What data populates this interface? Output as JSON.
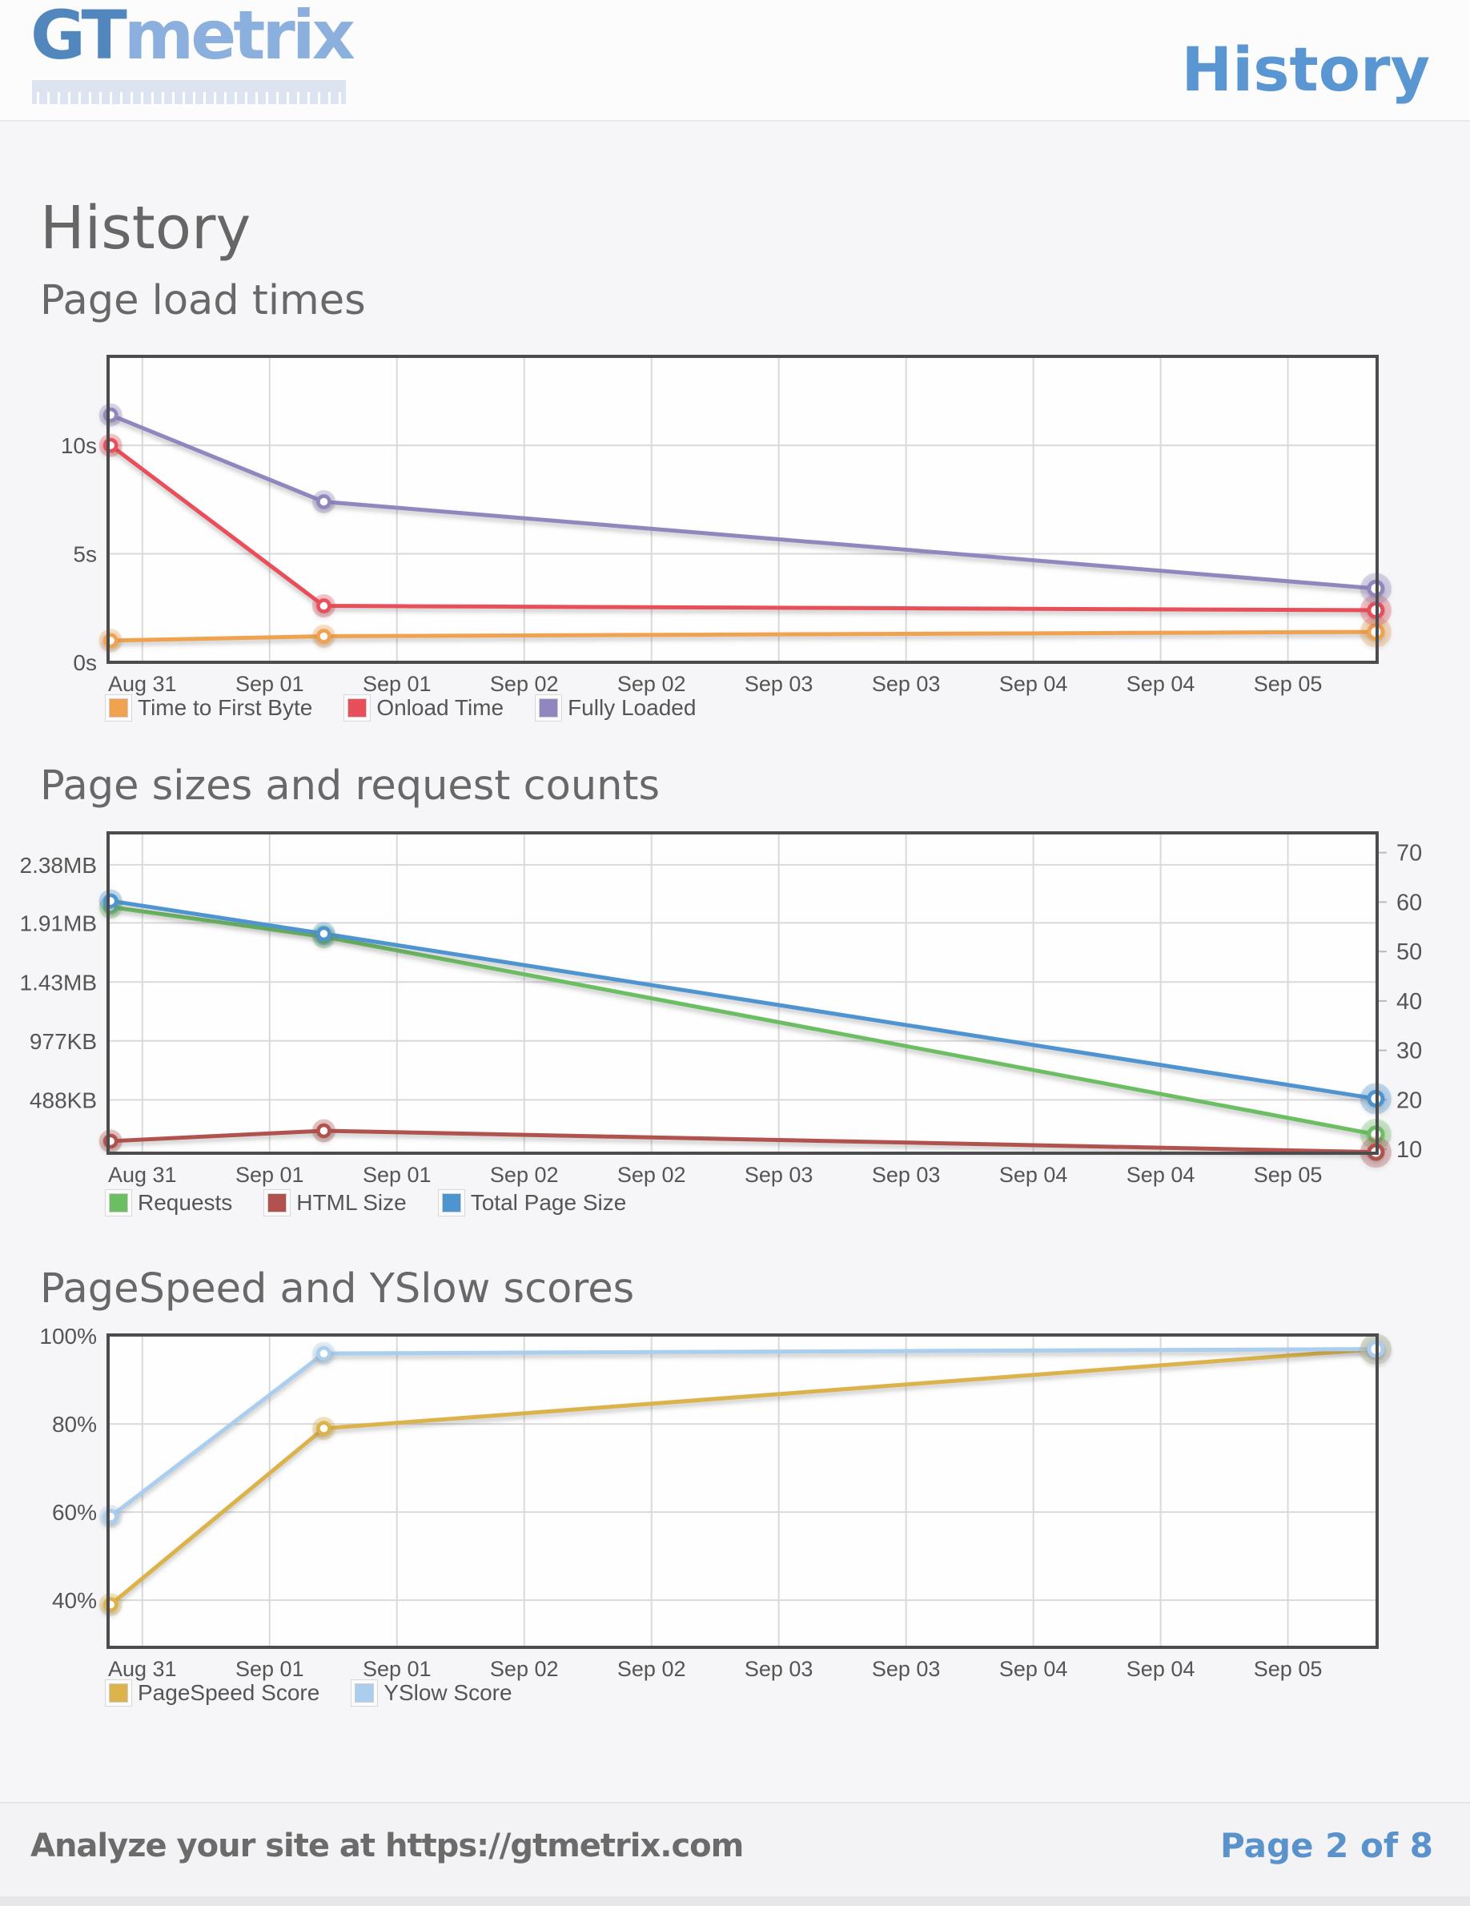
{
  "colors": {
    "page_bg": "#f6f6f8",
    "header_bg": "#fcfcfd",
    "accent_blue": "#5a96d2",
    "logo_gt_blue": "#5287be",
    "logo_metrix_blue": "#8cb0dd",
    "heading_gray": "#686868",
    "axis_text": "#555555",
    "grid_line": "#d9d9dc",
    "plot_border": "#4c4c4e",
    "footer_text": "#6b6b6b",
    "footer_page_blue": "#5a92cc"
  },
  "header": {
    "logo_gt": "GT",
    "logo_metrix": "metrix",
    "page_title": "History"
  },
  "main_heading": "History",
  "footer": {
    "left_text": "Analyze your site at https://gtmetrix.com",
    "right_text": "Page 2 of 8"
  },
  "chart_data": [
    {
      "id": "page-load-times",
      "type": "line",
      "title": "Page load times",
      "x_tick_labels": [
        "Aug 31",
        "Sep 01",
        "Sep 01",
        "Sep 02",
        "Sep 02",
        "Sep 03",
        "Sep 03",
        "Sep 04",
        "Sep 04",
        "Sep 05"
      ],
      "x_layout": {
        "tick_start_frac": 0.027,
        "tick_step_frac": 0.1003,
        "point_fracs": [
          0.002,
          0.17,
          0.999
        ]
      },
      "axes": {
        "left": {
          "min": 0,
          "max": 14.1,
          "ticks": [
            {
              "v": 0,
              "label": "0s"
            },
            {
              "v": 5,
              "label": "5s"
            },
            {
              "v": 10,
              "label": "10s"
            }
          ]
        }
      },
      "series": [
        {
          "name": "Time to First Byte",
          "color": "#F0A24E",
          "axis": "left",
          "unit": "s",
          "values": [
            1.0,
            1.2,
            1.4
          ]
        },
        {
          "name": "Onload Time",
          "color": "#E94F5B",
          "axis": "left",
          "unit": "s",
          "values": [
            10.0,
            2.6,
            2.4
          ]
        },
        {
          "name": "Fully Loaded",
          "color": "#9286BE",
          "axis": "left",
          "unit": "s",
          "values": [
            11.4,
            7.4,
            3.4
          ]
        }
      ]
    },
    {
      "id": "page-sizes-request-counts",
      "type": "line",
      "title": "Page sizes and request counts",
      "x_tick_labels": [
        "Aug 31",
        "Sep 01",
        "Sep 01",
        "Sep 02",
        "Sep 02",
        "Sep 03",
        "Sep 03",
        "Sep 04",
        "Sep 04",
        "Sep 05"
      ],
      "x_layout": {
        "tick_start_frac": 0.027,
        "tick_step_frac": 0.1003,
        "point_fracs": [
          0.002,
          0.17,
          0.999
        ]
      },
      "axes": {
        "left": {
          "min": 46,
          "max": 2702,
          "ticks": [
            {
              "v": 488,
              "label": "488KB"
            },
            {
              "v": 977,
              "label": "977KB"
            },
            {
              "v": 1465,
              "label": "1.43MB"
            },
            {
              "v": 1956,
              "label": "1.91MB"
            },
            {
              "v": 2437,
              "label": "2.38MB"
            }
          ]
        },
        "right": {
          "min": 9.2,
          "max": 74,
          "ticks": [
            {
              "v": 10,
              "label": "10"
            },
            {
              "v": 20,
              "label": "20"
            },
            {
              "v": 30,
              "label": "30"
            },
            {
              "v": 40,
              "label": "40"
            },
            {
              "v": 50,
              "label": "50"
            },
            {
              "v": 60,
              "label": "60"
            },
            {
              "v": 70,
              "label": "70"
            }
          ]
        }
      },
      "series": [
        {
          "name": "Requests",
          "color": "#6CBE63",
          "axis": "right",
          "unit": "requests",
          "values": [
            59,
            53,
            13
          ]
        },
        {
          "name": "HTML Size",
          "color": "#B2524E",
          "axis": "left",
          "unit": "KB",
          "values": [
            146,
            232,
            55
          ]
        },
        {
          "name": "Total Page Size",
          "color": "#4D94D0",
          "axis": "left",
          "unit": "KB",
          "values": [
            2138,
            1866,
            498
          ]
        }
      ]
    },
    {
      "id": "pagespeed-yslow-scores",
      "type": "line",
      "title": "PageSpeed and YSlow scores",
      "x_tick_labels": [
        "Aug 31",
        "Sep 01",
        "Sep 01",
        "Sep 02",
        "Sep 02",
        "Sep 03",
        "Sep 03",
        "Sep 04",
        "Sep 04",
        "Sep 05"
      ],
      "x_layout": {
        "tick_start_frac": 0.027,
        "tick_step_frac": 0.1003,
        "point_fracs": [
          0.002,
          0.17,
          0.999
        ]
      },
      "axes": {
        "left": {
          "min": 29.3,
          "max": 100.2,
          "ticks": [
            {
              "v": 40,
              "label": "40%"
            },
            {
              "v": 60,
              "label": "60%"
            },
            {
              "v": 80,
              "label": "80%"
            },
            {
              "v": 100,
              "label": "100%"
            }
          ]
        }
      },
      "series": [
        {
          "name": "PageSpeed Score",
          "color": "#DBB34A",
          "axis": "left",
          "unit": "%",
          "values": [
            39,
            79,
            97
          ]
        },
        {
          "name": "YSlow Score",
          "color": "#ABCDEE",
          "axis": "left",
          "unit": "%",
          "values": [
            59,
            96,
            97
          ]
        }
      ]
    }
  ]
}
